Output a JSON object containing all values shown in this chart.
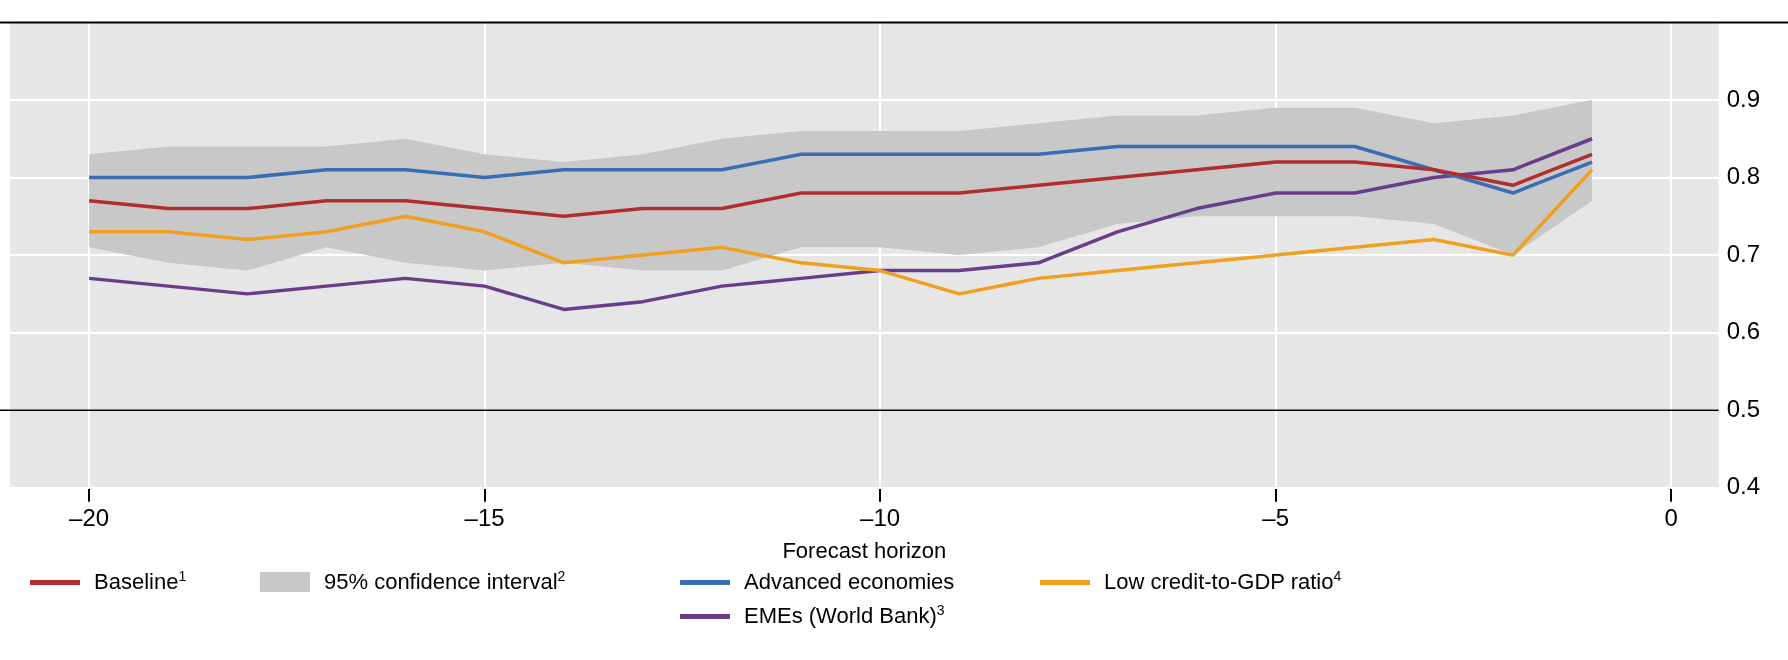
{
  "chart_data": {
    "type": "line",
    "xlabel": "Forecast horizon",
    "x": [
      -20,
      -19,
      -18,
      -17,
      -16,
      -15,
      -14,
      -13,
      -12,
      -11,
      -10,
      -9,
      -8,
      -7,
      -6,
      -5,
      -4,
      -3,
      -2,
      -1
    ],
    "series": [
      {
        "name": "Baseline$^{1}$",
        "color": "#b22e2e",
        "values": [
          0.77,
          0.76,
          0.76,
          0.77,
          0.77,
          0.76,
          0.75,
          0.76,
          0.76,
          0.78,
          0.78,
          0.78,
          0.79,
          0.8,
          0.81,
          0.82,
          0.82,
          0.81,
          0.79,
          0.83
        ]
      },
      {
        "name": "95% confidence interval$^{2}$",
        "type": "area",
        "color": "#c8c8c8",
        "values": [
          null,
          null,
          null,
          null,
          null,
          null,
          null,
          null,
          null,
          null,
          null,
          null,
          null,
          null,
          null,
          null,
          null,
          null,
          null,
          null
        ],
        "lower": [
          0.71,
          0.69,
          0.68,
          0.71,
          0.69,
          0.68,
          0.69,
          0.68,
          0.68,
          0.71,
          0.71,
          0.7,
          0.71,
          0.74,
          0.75,
          0.75,
          0.75,
          0.74,
          0.7,
          0.77
        ],
        "upper": [
          0.83,
          0.84,
          0.84,
          0.84,
          0.85,
          0.83,
          0.82,
          0.83,
          0.85,
          0.86,
          0.86,
          0.86,
          0.87,
          0.88,
          0.88,
          0.89,
          0.89,
          0.87,
          0.88,
          0.9
        ]
      },
      {
        "name": "Advanced economies",
        "color": "#3a6eb4",
        "values": [
          0.8,
          0.8,
          0.8,
          0.81,
          0.81,
          0.8,
          0.81,
          0.81,
          0.81,
          0.83,
          0.83,
          0.83,
          0.83,
          0.84,
          0.84,
          0.84,
          0.84,
          0.81,
          0.78,
          0.82
        ]
      },
      {
        "name": "Low credit-to-GDP ratio$^{4}$",
        "color": "#f0a020",
        "values": [
          0.73,
          0.73,
          0.72,
          0.73,
          0.75,
          0.73,
          0.69,
          0.7,
          0.71,
          0.69,
          0.68,
          0.65,
          0.67,
          0.68,
          0.69,
          0.7,
          0.71,
          0.72,
          0.7,
          0.81
        ]
      },
      {
        "name": "EMEs (World Bank)$^{3}$",
        "color": "#6a3d8a",
        "values": [
          0.67,
          0.66,
          0.65,
          0.66,
          0.67,
          0.66,
          0.63,
          0.64,
          0.66,
          0.67,
          0.68,
          0.68,
          0.69,
          0.73,
          0.76,
          0.78,
          0.78,
          0.8,
          0.81,
          0.85
        ]
      }
    ],
    "xlim": [
      -21,
      0.6
    ],
    "xticks": [
      {
        "value": -20,
        "label": "–20"
      },
      {
        "value": -15,
        "label": "–15"
      },
      {
        "value": -10,
        "label": "–10"
      },
      {
        "value": -5,
        "label": "–5"
      },
      0
    ],
    "ylim": [
      0.4,
      1.0
    ],
    "yticks": [
      0.4,
      0.5,
      0.6,
      0.7,
      0.8,
      0.9
    ],
    "ref_lines": [
      {
        "axis": "y",
        "value": 0.5,
        "color": "#000000"
      }
    ],
    "grid": true,
    "legend": "bottom",
    "marker": "none",
    "line_style": "solid"
  }
}
